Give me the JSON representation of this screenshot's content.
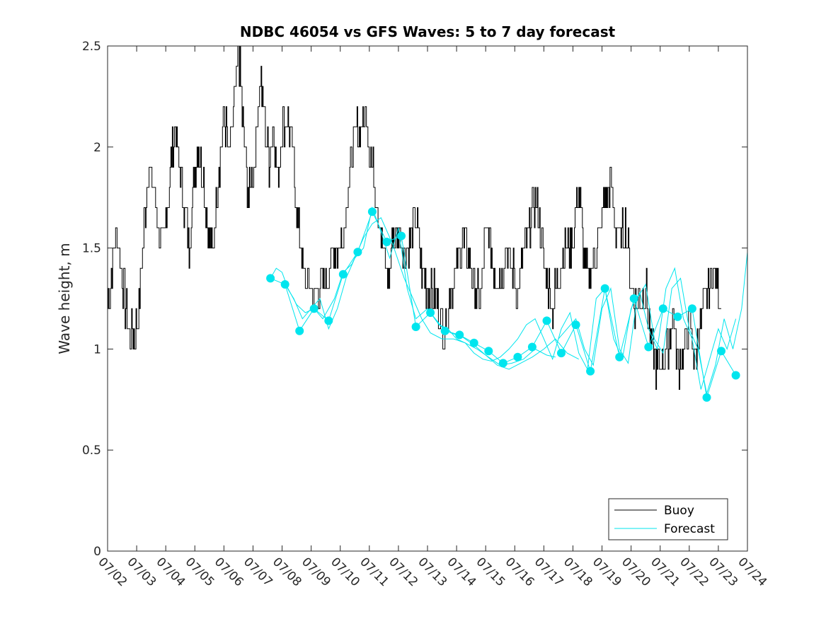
{
  "chart_data": {
    "type": "line",
    "title": "NDBC 46054 vs GFS Waves: 5 to 7 day forecast",
    "xlabel": "",
    "ylabel": "Wave height, m",
    "xlim": [
      "07/02",
      "07/24"
    ],
    "ylim": [
      0,
      2.5
    ],
    "x_ticks": [
      "07/02",
      "07/03",
      "07/04",
      "07/05",
      "07/06",
      "07/07",
      "07/08",
      "07/09",
      "07/10",
      "07/11",
      "07/12",
      "07/13",
      "07/14",
      "07/15",
      "07/16",
      "07/17",
      "07/18",
      "07/19",
      "07/20",
      "07/21",
      "07/22",
      "07/23",
      "07/24"
    ],
    "y_ticks": [
      "0",
      "0.5",
      "1",
      "1.5",
      "2",
      "2.5"
    ],
    "grid": false,
    "legend_position": "bottom-right",
    "legend": [
      "Buoy",
      "Forecast"
    ],
    "colors": {
      "buoy": "#000000",
      "forecast": "#00e5ee"
    },
    "series": [
      {
        "name": "Buoy",
        "x_days": [
          0,
          0.1,
          0.2,
          0.35,
          0.5,
          0.7,
          0.9,
          1.05,
          1.2,
          1.4,
          1.6,
          1.75,
          1.9,
          2.1,
          2.3,
          2.45,
          2.6,
          2.8,
          2.95,
          3.1,
          3.3,
          3.45,
          3.6,
          3.8,
          4.0,
          4.15,
          4.3,
          4.5,
          4.65,
          4.85,
          5.05,
          5.25,
          5.4,
          5.55,
          5.7,
          5.85,
          6.0,
          6.2,
          6.35,
          6.5,
          6.75,
          6.95,
          7.1,
          7.3,
          7.5,
          7.7,
          7.9,
          8.1,
          8.3,
          8.5,
          8.7,
          8.9,
          9.1,
          9.3,
          9.5,
          9.65,
          9.8,
          10.0,
          10.2,
          10.4,
          10.6,
          10.8,
          11.0,
          11.2,
          11.4,
          11.6,
          11.8,
          12.0,
          12.2,
          12.4,
          12.6,
          12.8,
          12.95,
          13.1,
          13.3,
          13.5,
          13.7,
          13.9,
          14.1,
          14.3,
          14.5,
          14.7,
          14.9,
          15.1,
          15.3,
          15.45,
          15.6,
          15.8,
          16.0,
          16.2,
          16.35,
          16.5,
          16.7,
          16.9,
          17.1,
          17.3,
          17.45,
          17.6,
          17.8,
          18.0,
          18.15,
          18.3,
          18.5,
          18.7,
          18.9,
          19.1,
          19.3,
          19.45,
          19.6,
          19.8,
          20.0,
          20.2,
          20.4,
          20.6,
          20.8,
          21.0,
          21.1
        ],
        "values": [
          1.25,
          1.3,
          1.5,
          1.55,
          1.35,
          1.1,
          1.05,
          1.2,
          1.5,
          1.9,
          1.8,
          1.6,
          1.5,
          1.8,
          2.1,
          1.9,
          1.75,
          1.5,
          1.8,
          2.0,
          1.85,
          1.6,
          1.45,
          1.85,
          2.2,
          1.95,
          2.1,
          2.5,
          2.1,
          1.75,
          1.95,
          2.35,
          2.15,
          1.9,
          2.15,
          1.8,
          2.1,
          2.15,
          2.0,
          1.7,
          1.35,
          1.3,
          1.25,
          1.3,
          1.35,
          1.45,
          1.5,
          1.55,
          1.85,
          2.05,
          2.1,
          2.15,
          1.9,
          1.7,
          1.45,
          1.35,
          1.55,
          1.6,
          1.45,
          1.55,
          1.65,
          1.4,
          1.3,
          1.3,
          1.2,
          1.1,
          1.3,
          1.4,
          1.55,
          1.45,
          1.3,
          1.25,
          1.5,
          1.55,
          1.4,
          1.35,
          1.5,
          1.4,
          1.3,
          1.45,
          1.6,
          1.75,
          1.55,
          1.35,
          1.2,
          1.35,
          1.45,
          1.5,
          1.55,
          1.8,
          1.5,
          1.35,
          1.45,
          1.55,
          1.75,
          1.85,
          1.6,
          1.55,
          1.6,
          1.35,
          1.2,
          1.25,
          1.3,
          1.0,
          0.9,
          0.95,
          1.05,
          1.2,
          0.9,
          1.0,
          1.15,
          0.95,
          1.15,
          1.25,
          1.35,
          1.3,
          1.2
        ],
        "jagged": true
      },
      {
        "name": "Forecast",
        "x_days": [
          5.6,
          6.1,
          6.6,
          7.1,
          7.6,
          8.1,
          8.6,
          9.1,
          9.6,
          10.1,
          10.6,
          11.1,
          11.6,
          12.1,
          12.6,
          13.1,
          13.6,
          14.1,
          14.6,
          15.1,
          15.6,
          16.1,
          16.6,
          17.1,
          17.6,
          18.1,
          18.6,
          19.1,
          19.6,
          20.1,
          20.6,
          21.1,
          21.6
        ],
        "values": [
          1.35,
          1.32,
          1.09,
          1.2,
          1.14,
          1.37,
          1.48,
          1.68,
          1.53,
          1.56,
          1.11,
          1.18,
          1.09,
          1.07,
          1.03,
          0.99,
          0.93,
          0.96,
          1.01,
          1.14,
          0.98,
          1.12,
          0.89,
          1.3,
          0.96,
          1.25,
          1.01,
          1.2,
          1.16,
          1.2,
          0.76,
          0.99,
          0.87
        ]
      }
    ],
    "forecast_members": [
      {
        "x_days": [
          5.6,
          5.8,
          6.0,
          6.2,
          6.5,
          6.8,
          7.1,
          7.4,
          7.8,
          8.1,
          8.4,
          8.8,
          9.1,
          9.4,
          9.8,
          10.2,
          10.5,
          10.8,
          11.1,
          11.5,
          11.9,
          12.3,
          12.7,
          13.1,
          13.5,
          13.9,
          14.3,
          14.7,
          15.1,
          15.4
        ],
        "values": [
          1.35,
          1.4,
          1.38,
          1.3,
          1.22,
          1.18,
          1.2,
          1.15,
          1.25,
          1.38,
          1.42,
          1.55,
          1.62,
          1.65,
          1.52,
          1.35,
          1.25,
          1.15,
          1.08,
          1.05,
          1.05,
          1.03,
          1.0,
          0.96,
          0.92,
          0.93,
          0.95,
          1.0,
          0.97,
          0.96
        ]
      },
      {
        "x_days": [
          6.1,
          6.4,
          6.7,
          7.0,
          7.3,
          7.6,
          7.9,
          8.2,
          8.5,
          8.8,
          9.1,
          9.4,
          9.7,
          10.0,
          10.3,
          10.6,
          11.0,
          11.4,
          11.8,
          12.2,
          12.6,
          13.0,
          13.4,
          13.8,
          14.2,
          14.6,
          15.0,
          15.4,
          15.8,
          16.2
        ],
        "values": [
          1.32,
          1.25,
          1.15,
          1.2,
          1.25,
          1.1,
          1.2,
          1.35,
          1.45,
          1.5,
          1.7,
          1.58,
          1.45,
          1.6,
          1.3,
          1.15,
          1.2,
          1.12,
          1.08,
          1.06,
          1.02,
          0.97,
          0.92,
          0.9,
          0.93,
          0.96,
          1.0,
          1.05,
          0.98,
          0.95
        ]
      },
      {
        "x_days": [
          11.1,
          11.4,
          11.7,
          12.0,
          12.3,
          12.6,
          12.9,
          13.2,
          13.5,
          13.8,
          14.1,
          14.4,
          14.7,
          15.0,
          15.3,
          15.6,
          15.9,
          16.2,
          16.5,
          16.8,
          17.1,
          17.4,
          17.7,
          18.0,
          18.3,
          18.6,
          18.9,
          19.2,
          19.5,
          19.8,
          20.1,
          20.4,
          20.7,
          21.0,
          21.3,
          21.6
        ],
        "values": [
          1.18,
          1.12,
          1.1,
          1.05,
          1.03,
          0.98,
          0.95,
          0.94,
          0.96,
          1.0,
          1.05,
          1.12,
          1.15,
          1.05,
          0.95,
          1.1,
          1.18,
          0.98,
          0.9,
          1.25,
          1.3,
          1.05,
          0.95,
          1.2,
          1.28,
          1.1,
          1.0,
          1.3,
          1.4,
          1.15,
          1.05,
          0.8,
          0.95,
          1.1,
          1.0,
          1.15
        ]
      },
      {
        "x_days": [
          15.5,
          15.8,
          16.1,
          16.4,
          16.7,
          17.0,
          17.3,
          17.6,
          17.9,
          18.2,
          18.5,
          18.8,
          19.1,
          19.4,
          19.7,
          20.0,
          20.3,
          20.6,
          20.9,
          21.2,
          21.5,
          21.8,
          22.0
        ],
        "values": [
          1.05,
          1.1,
          1.15,
          1.0,
          0.92,
          1.2,
          1.3,
          1.0,
          0.93,
          1.25,
          1.32,
          1.05,
          0.98,
          1.3,
          1.35,
          1.1,
          1.0,
          0.78,
          0.92,
          1.15,
          1.0,
          1.2,
          1.48
        ]
      }
    ]
  }
}
